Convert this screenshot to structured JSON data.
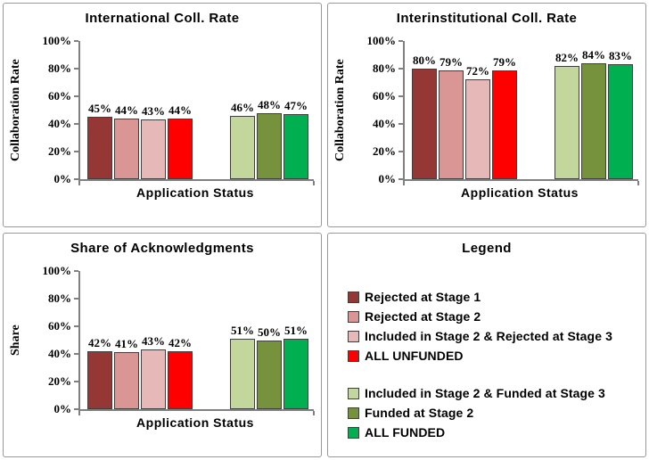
{
  "colors": {
    "axis": "#808080",
    "bar_border": "#3F3F3F",
    "panel_border": "#999999",
    "background": "#FFFFFF",
    "all_unfunded": "#FF0000",
    "all_funded": "#00B050"
  },
  "legend": {
    "title": "Legend",
    "unfunded_items": [
      {
        "label": "Rejected at Stage 1",
        "color": "#953735"
      },
      {
        "label": "Rejected at Stage 2",
        "color": "#D99694"
      },
      {
        "label": "Included in Stage 2 & Rejected at Stage 3",
        "color": "#E6B8B7"
      },
      {
        "label": "ALL UNFUNDED",
        "color": "#FF0000"
      }
    ],
    "funded_items": [
      {
        "label": "Included in Stage 2 & Funded at Stage 3",
        "color": "#C3D69B"
      },
      {
        "label": "Funded at Stage 2",
        "color": "#76923C"
      },
      {
        "label": "ALL FUNDED",
        "color": "#00B050"
      }
    ]
  },
  "chart_data": [
    {
      "type": "bar",
      "title": "International Coll. Rate",
      "ylabel": "Collaboration Rate",
      "xlabel": "Application Status",
      "ylim": [
        0,
        100
      ],
      "yticks": [
        "0%",
        "20%",
        "40%",
        "60%",
        "80%",
        "100%"
      ],
      "grid": false,
      "series": [
        {
          "name": "Rejected at Stage 1",
          "group": "unfunded",
          "color": "#953735",
          "value": 45,
          "label": "45%"
        },
        {
          "name": "Rejected at Stage 2",
          "group": "unfunded",
          "color": "#D99694",
          "value": 44,
          "label": "44%"
        },
        {
          "name": "Included in Stage 2 & Rejected at Stage 3",
          "group": "unfunded",
          "color": "#E6B8B7",
          "value": 43,
          "label": "43%"
        },
        {
          "name": "ALL UNFUNDED",
          "group": "unfunded",
          "color": "#FF0000",
          "value": 44,
          "label": "44%"
        },
        {
          "name": "Included in Stage 2 & Funded at Stage 3",
          "group": "funded",
          "color": "#C3D69B",
          "value": 46,
          "label": "46%"
        },
        {
          "name": "Funded at Stage 2",
          "group": "funded",
          "color": "#76923C",
          "value": 48,
          "label": "48%"
        },
        {
          "name": "ALL FUNDED",
          "group": "funded",
          "color": "#00B050",
          "value": 47,
          "label": "47%"
        }
      ]
    },
    {
      "type": "bar",
      "title": "Interinstitutional Coll. Rate",
      "ylabel": "Collaboration Rate",
      "xlabel": "Application Status",
      "ylim": [
        0,
        100
      ],
      "yticks": [
        "0%",
        "20%",
        "40%",
        "60%",
        "80%",
        "100%"
      ],
      "grid": false,
      "series": [
        {
          "name": "Rejected at Stage 1",
          "group": "unfunded",
          "color": "#953735",
          "value": 80,
          "label": "80%"
        },
        {
          "name": "Rejected at Stage 2",
          "group": "unfunded",
          "color": "#D99694",
          "value": 79,
          "label": "79%"
        },
        {
          "name": "Included in Stage 2 & Rejected at Stage 3",
          "group": "unfunded",
          "color": "#E6B8B7",
          "value": 72,
          "label": "72%"
        },
        {
          "name": "ALL UNFUNDED",
          "group": "unfunded",
          "color": "#FF0000",
          "value": 79,
          "label": "79%"
        },
        {
          "name": "Included in Stage 2 & Funded at Stage 3",
          "group": "funded",
          "color": "#C3D69B",
          "value": 82,
          "label": "82%"
        },
        {
          "name": "Funded at Stage 2",
          "group": "funded",
          "color": "#76923C",
          "value": 84,
          "label": "84%"
        },
        {
          "name": "ALL FUNDED",
          "group": "funded",
          "color": "#00B050",
          "value": 83,
          "label": "83%"
        }
      ]
    },
    {
      "type": "bar",
      "title": "Share of Acknowledgments",
      "ylabel": "Share",
      "xlabel": "Application Status",
      "ylim": [
        0,
        100
      ],
      "yticks": [
        "0%",
        "20%",
        "40%",
        "60%",
        "80%",
        "100%"
      ],
      "grid": false,
      "series": [
        {
          "name": "Rejected at Stage 1",
          "group": "unfunded",
          "color": "#953735",
          "value": 42,
          "label": "42%"
        },
        {
          "name": "Rejected at Stage 2",
          "group": "unfunded",
          "color": "#D99694",
          "value": 41,
          "label": "41%"
        },
        {
          "name": "Included in Stage 2 & Rejected at Stage 3",
          "group": "unfunded",
          "color": "#E6B8B7",
          "value": 43,
          "label": "43%"
        },
        {
          "name": "ALL UNFUNDED",
          "group": "unfunded",
          "color": "#FF0000",
          "value": 42,
          "label": "42%"
        },
        {
          "name": "Included in Stage 2 & Funded at Stage 3",
          "group": "funded",
          "color": "#C3D69B",
          "value": 51,
          "label": "51%"
        },
        {
          "name": "Funded at Stage 2",
          "group": "funded",
          "color": "#76923C",
          "value": 50,
          "label": "50%"
        },
        {
          "name": "ALL FUNDED",
          "group": "funded",
          "color": "#00B050",
          "value": 51,
          "label": "51%"
        }
      ]
    }
  ]
}
